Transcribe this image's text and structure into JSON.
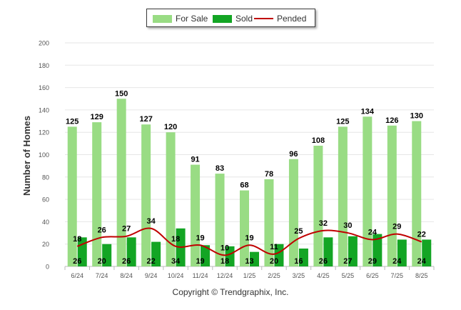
{
  "colors": {
    "for_sale": "#99dc84",
    "sold": "#13a524",
    "pended": "#c00000"
  },
  "legend": {
    "for_sale": "For Sale",
    "sold": "Sold",
    "pended": "Pended"
  },
  "copyright": "Copyright © Trendgraphix, Inc.",
  "chart_data": {
    "type": "bar",
    "title": "",
    "xlabel": "",
    "ylabel": "Number of Homes",
    "ylim": [
      0,
      200
    ],
    "yticks": [
      0,
      20,
      40,
      60,
      80,
      100,
      120,
      140,
      160,
      180,
      200
    ],
    "grid": true,
    "legend_position": "top-center",
    "categories": [
      "6/24",
      "7/24",
      "8/24",
      "9/24",
      "10/24",
      "11/24",
      "12/24",
      "1/25",
      "2/25",
      "3/25",
      "4/25",
      "5/25",
      "6/25",
      "7/25",
      "8/25"
    ],
    "series": [
      {
        "name": "For Sale",
        "type": "bar",
        "values": [
          125,
          129,
          150,
          127,
          120,
          91,
          83,
          68,
          78,
          96,
          108,
          125,
          134,
          126,
          130
        ]
      },
      {
        "name": "Sold",
        "type": "bar",
        "values": [
          26,
          20,
          26,
          22,
          34,
          19,
          18,
          13,
          20,
          16,
          26,
          27,
          29,
          24,
          24
        ]
      },
      {
        "name": "Pended",
        "type": "line",
        "values": [
          18,
          26,
          27,
          34,
          18,
          19,
          10,
          19,
          11,
          25,
          32,
          30,
          24,
          29,
          22
        ]
      }
    ]
  }
}
